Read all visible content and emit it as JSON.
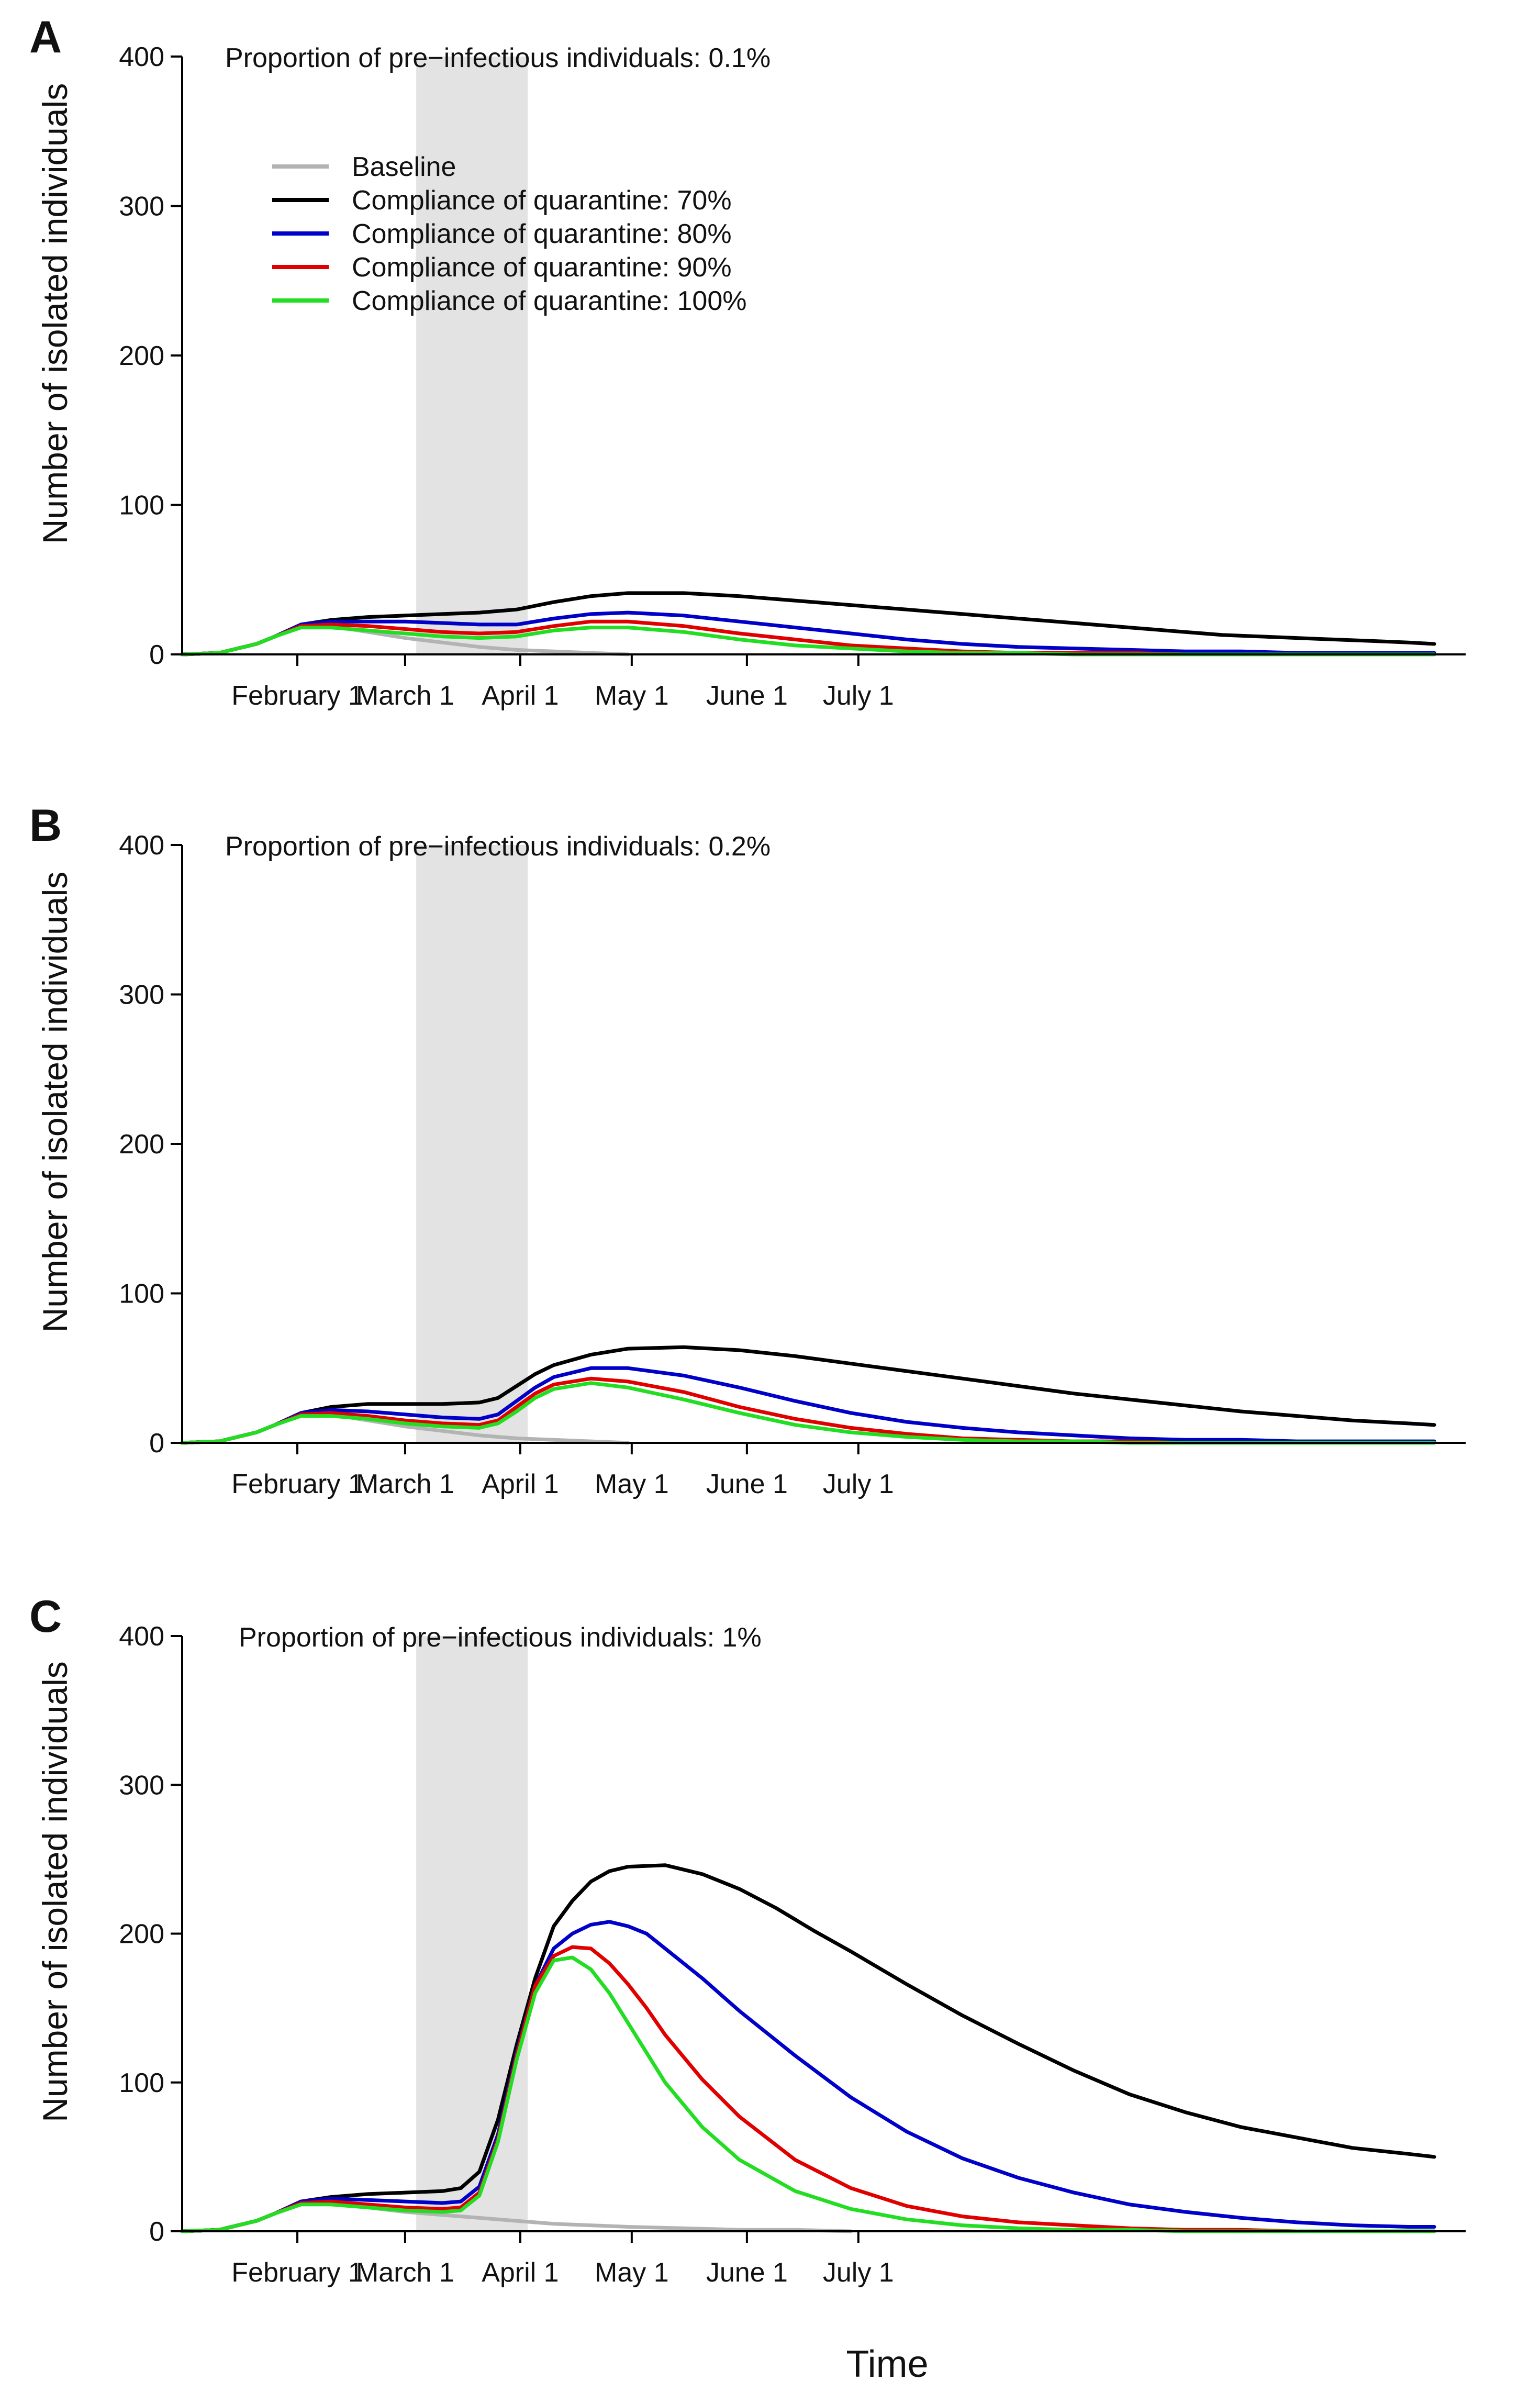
{
  "chart_data": [
    {
      "panel_label": "A",
      "type": "line",
      "annotation": "Proportion of pre−infectious individuals: 0.1%",
      "ylabel": "Number of isolated individuals",
      "xlabel": "",
      "ylim": [
        0,
        400
      ],
      "yticks": [
        0,
        100,
        200,
        300,
        400
      ],
      "x_tick_labels": [
        "February 1",
        "March 1",
        "April 1",
        "May 1",
        "June 1",
        "July 1"
      ],
      "shaded_region": [
        63,
        93
      ],
      "legend": true,
      "series": [
        {
          "name": "Baseline",
          "color": "#b3b3b3",
          "x": [
            0,
            10,
            20,
            25,
            32,
            40,
            50,
            60,
            70,
            80,
            90,
            100,
            110,
            120
          ],
          "y": [
            0,
            1,
            7,
            12,
            20,
            19,
            15,
            11,
            8,
            5,
            3,
            2,
            1,
            0
          ]
        },
        {
          "name": "Compliance of quarantine: 70%",
          "color": "#000000",
          "x": [
            0,
            10,
            20,
            25,
            32,
            40,
            50,
            60,
            70,
            80,
            90,
            100,
            110,
            120,
            135,
            150,
            165,
            180,
            195,
            210,
            225,
            240,
            250,
            260,
            270,
            280,
            290,
            300,
            310,
            320,
            330,
            337
          ],
          "y": [
            0,
            1,
            7,
            12,
            20,
            23,
            25,
            26,
            27,
            28,
            30,
            35,
            39,
            41,
            41,
            39,
            36,
            33,
            30,
            27,
            24,
            21,
            19,
            17,
            15,
            13,
            12,
            11,
            10,
            9,
            8,
            7
          ]
        },
        {
          "name": "Compliance of quarantine: 80%",
          "color": "#0000c8",
          "x": [
            0,
            10,
            20,
            25,
            32,
            40,
            50,
            60,
            70,
            80,
            90,
            100,
            110,
            120,
            135,
            150,
            165,
            180,
            195,
            210,
            225,
            240,
            255,
            270,
            285,
            300,
            315,
            330,
            337
          ],
          "y": [
            0,
            1,
            7,
            12,
            20,
            22,
            22,
            22,
            21,
            20,
            20,
            24,
            27,
            28,
            26,
            22,
            18,
            14,
            10,
            7,
            5,
            4,
            3,
            2,
            2,
            1,
            1,
            1,
            1
          ]
        },
        {
          "name": "Compliance of quarantine: 90%",
          "color": "#e00000",
          "x": [
            0,
            10,
            20,
            25,
            32,
            40,
            50,
            60,
            70,
            80,
            90,
            100,
            110,
            120,
            135,
            150,
            165,
            180,
            195,
            210,
            225,
            240,
            255,
            270,
            285,
            300,
            315,
            330,
            337
          ],
          "y": [
            0,
            1,
            7,
            12,
            19,
            20,
            19,
            17,
            15,
            14,
            15,
            19,
            22,
            22,
            19,
            14,
            10,
            6,
            4,
            2,
            1,
            1,
            1,
            0,
            0,
            0,
            0,
            0,
            0
          ]
        },
        {
          "name": "Compliance of quarantine: 100%",
          "color": "#22dd22",
          "x": [
            0,
            10,
            20,
            25,
            32,
            40,
            50,
            60,
            70,
            80,
            90,
            100,
            110,
            120,
            135,
            150,
            165,
            180,
            195,
            210,
            225,
            240,
            255,
            270,
            285,
            300,
            315,
            330,
            337
          ],
          "y": [
            0,
            1,
            7,
            12,
            18,
            18,
            16,
            14,
            12,
            11,
            12,
            16,
            18,
            18,
            15,
            10,
            6,
            4,
            2,
            1,
            1,
            0,
            0,
            0,
            0,
            0,
            0,
            0,
            0
          ]
        }
      ]
    },
    {
      "panel_label": "B",
      "type": "line",
      "annotation": "Proportion of pre−infectious individuals: 0.2%",
      "ylabel": "Number of isolated individuals",
      "xlabel": "",
      "ylim": [
        0,
        400
      ],
      "yticks": [
        0,
        100,
        200,
        300,
        400
      ],
      "x_tick_labels": [
        "February 1",
        "March 1",
        "April 1",
        "May 1",
        "June 1",
        "July 1"
      ],
      "shaded_region": [
        63,
        93
      ],
      "legend": false,
      "series": [
        {
          "name": "Baseline",
          "color": "#b3b3b3",
          "x": [
            0,
            10,
            20,
            25,
            32,
            40,
            50,
            60,
            70,
            80,
            90,
            100,
            110,
            120
          ],
          "y": [
            0,
            1,
            7,
            12,
            20,
            19,
            15,
            11,
            8,
            5,
            3,
            2,
            1,
            0
          ]
        },
        {
          "name": "Compliance of quarantine: 70%",
          "color": "#000000",
          "x": [
            0,
            10,
            20,
            25,
            32,
            40,
            50,
            60,
            70,
            80,
            85,
            90,
            95,
            100,
            110,
            120,
            135,
            150,
            165,
            180,
            195,
            210,
            225,
            240,
            255,
            270,
            285,
            300,
            315,
            330,
            337
          ],
          "y": [
            0,
            1,
            7,
            12,
            20,
            24,
            26,
            26,
            26,
            27,
            30,
            38,
            46,
            52,
            59,
            63,
            64,
            62,
            58,
            53,
            48,
            43,
            38,
            33,
            29,
            25,
            21,
            18,
            15,
            13,
            12
          ]
        },
        {
          "name": "Compliance of quarantine: 80%",
          "color": "#0000c8",
          "x": [
            0,
            10,
            20,
            25,
            32,
            40,
            50,
            60,
            70,
            80,
            85,
            90,
            95,
            100,
            110,
            120,
            135,
            150,
            165,
            180,
            195,
            210,
            225,
            240,
            255,
            270,
            285,
            300,
            315,
            330,
            337
          ],
          "y": [
            0,
            1,
            7,
            12,
            20,
            22,
            21,
            19,
            17,
            16,
            19,
            28,
            37,
            44,
            50,
            50,
            45,
            37,
            28,
            20,
            14,
            10,
            7,
            5,
            3,
            2,
            2,
            1,
            1,
            1,
            1
          ]
        },
        {
          "name": "Compliance of quarantine: 90%",
          "color": "#e00000",
          "x": [
            0,
            10,
            20,
            25,
            32,
            40,
            50,
            60,
            70,
            80,
            85,
            90,
            95,
            100,
            110,
            120,
            135,
            150,
            165,
            180,
            195,
            210,
            225,
            240,
            255,
            270,
            285,
            300,
            315,
            330,
            337
          ],
          "y": [
            0,
            1,
            7,
            12,
            19,
            20,
            18,
            15,
            13,
            12,
            15,
            24,
            33,
            39,
            43,
            41,
            34,
            24,
            16,
            10,
            6,
            3,
            2,
            1,
            1,
            0,
            0,
            0,
            0,
            0,
            0
          ]
        },
        {
          "name": "Compliance of quarantine: 100%",
          "color": "#22dd22",
          "x": [
            0,
            10,
            20,
            25,
            32,
            40,
            50,
            60,
            70,
            80,
            85,
            90,
            95,
            100,
            110,
            120,
            135,
            150,
            165,
            180,
            195,
            210,
            225,
            240,
            255,
            270,
            285,
            300,
            315,
            330,
            337
          ],
          "y": [
            0,
            1,
            7,
            12,
            18,
            18,
            16,
            13,
            11,
            10,
            13,
            21,
            30,
            36,
            40,
            37,
            29,
            20,
            12,
            7,
            4,
            2,
            1,
            1,
            0,
            0,
            0,
            0,
            0,
            0,
            0
          ]
        }
      ]
    },
    {
      "panel_label": "C",
      "type": "line",
      "annotation": "Proportion of pre−infectious individuals: 1%",
      "ylabel": "Number of isolated individuals",
      "xlabel": "Time",
      "ylim": [
        0,
        400
      ],
      "yticks": [
        0,
        100,
        200,
        300,
        400
      ],
      "x_tick_labels": [
        "February 1",
        "March 1",
        "April 1",
        "May 1",
        "June 1",
        "July 1"
      ],
      "shaded_region": [
        63,
        93
      ],
      "legend": false,
      "series": [
        {
          "name": "Baseline",
          "color": "#b3b3b3",
          "x": [
            0,
            10,
            20,
            25,
            32,
            40,
            50,
            60,
            70,
            80,
            90,
            100,
            110,
            120,
            135,
            150,
            165,
            180
          ],
          "y": [
            0,
            1,
            7,
            12,
            20,
            19,
            16,
            13,
            11,
            9,
            7,
            5,
            4,
            3,
            2,
            1,
            1,
            0
          ]
        },
        {
          "name": "Compliance of quarantine: 70%",
          "color": "#000000",
          "x": [
            0,
            10,
            20,
            25,
            32,
            40,
            50,
            60,
            70,
            75,
            80,
            85,
            90,
            95,
            100,
            105,
            110,
            115,
            120,
            130,
            140,
            150,
            160,
            170,
            180,
            195,
            210,
            225,
            240,
            255,
            270,
            285,
            300,
            315,
            330,
            337
          ],
          "y": [
            0,
            1,
            7,
            12,
            20,
            23,
            25,
            26,
            27,
            29,
            40,
            75,
            125,
            170,
            205,
            222,
            235,
            242,
            245,
            246,
            240,
            230,
            217,
            202,
            188,
            166,
            145,
            126,
            108,
            92,
            80,
            70,
            63,
            56,
            52,
            50
          ]
        },
        {
          "name": "Compliance of quarantine: 80%",
          "color": "#0000c8",
          "x": [
            0,
            10,
            20,
            25,
            32,
            40,
            50,
            60,
            70,
            75,
            80,
            85,
            90,
            95,
            100,
            105,
            110,
            115,
            120,
            125,
            130,
            140,
            150,
            165,
            180,
            195,
            210,
            225,
            240,
            255,
            270,
            285,
            300,
            315,
            330,
            337
          ],
          "y": [
            0,
            1,
            7,
            12,
            20,
            22,
            21,
            20,
            19,
            20,
            30,
            65,
            120,
            165,
            190,
            200,
            206,
            208,
            205,
            200,
            190,
            170,
            148,
            118,
            90,
            67,
            49,
            36,
            26,
            18,
            13,
            9,
            6,
            4,
            3,
            3
          ]
        },
        {
          "name": "Compliance of quarantine: 90%",
          "color": "#e00000",
          "x": [
            0,
            10,
            20,
            25,
            32,
            40,
            50,
            60,
            70,
            75,
            80,
            85,
            90,
            95,
            100,
            105,
            110,
            115,
            120,
            125,
            130,
            140,
            150,
            165,
            180,
            195,
            210,
            225,
            240,
            255,
            270,
            285,
            300,
            315,
            330,
            337
          ],
          "y": [
            0,
            1,
            7,
            12,
            19,
            20,
            18,
            16,
            15,
            16,
            26,
            62,
            118,
            165,
            185,
            191,
            190,
            180,
            166,
            150,
            132,
            102,
            77,
            48,
            29,
            17,
            10,
            6,
            4,
            2,
            1,
            1,
            0,
            0,
            0,
            0
          ]
        },
        {
          "name": "Compliance of quarantine: 100%",
          "color": "#22dd22",
          "x": [
            0,
            10,
            20,
            25,
            32,
            40,
            50,
            60,
            70,
            75,
            80,
            85,
            90,
            95,
            100,
            105,
            110,
            115,
            120,
            125,
            130,
            140,
            150,
            165,
            180,
            195,
            210,
            225,
            240,
            255,
            270,
            285,
            300,
            315,
            330,
            337
          ],
          "y": [
            0,
            1,
            7,
            12,
            18,
            18,
            16,
            14,
            13,
            14,
            24,
            60,
            115,
            160,
            182,
            184,
            176,
            160,
            140,
            120,
            100,
            70,
            48,
            27,
            15,
            8,
            4,
            2,
            1,
            1,
            0,
            0,
            0,
            0,
            0,
            0
          ]
        }
      ]
    }
  ]
}
